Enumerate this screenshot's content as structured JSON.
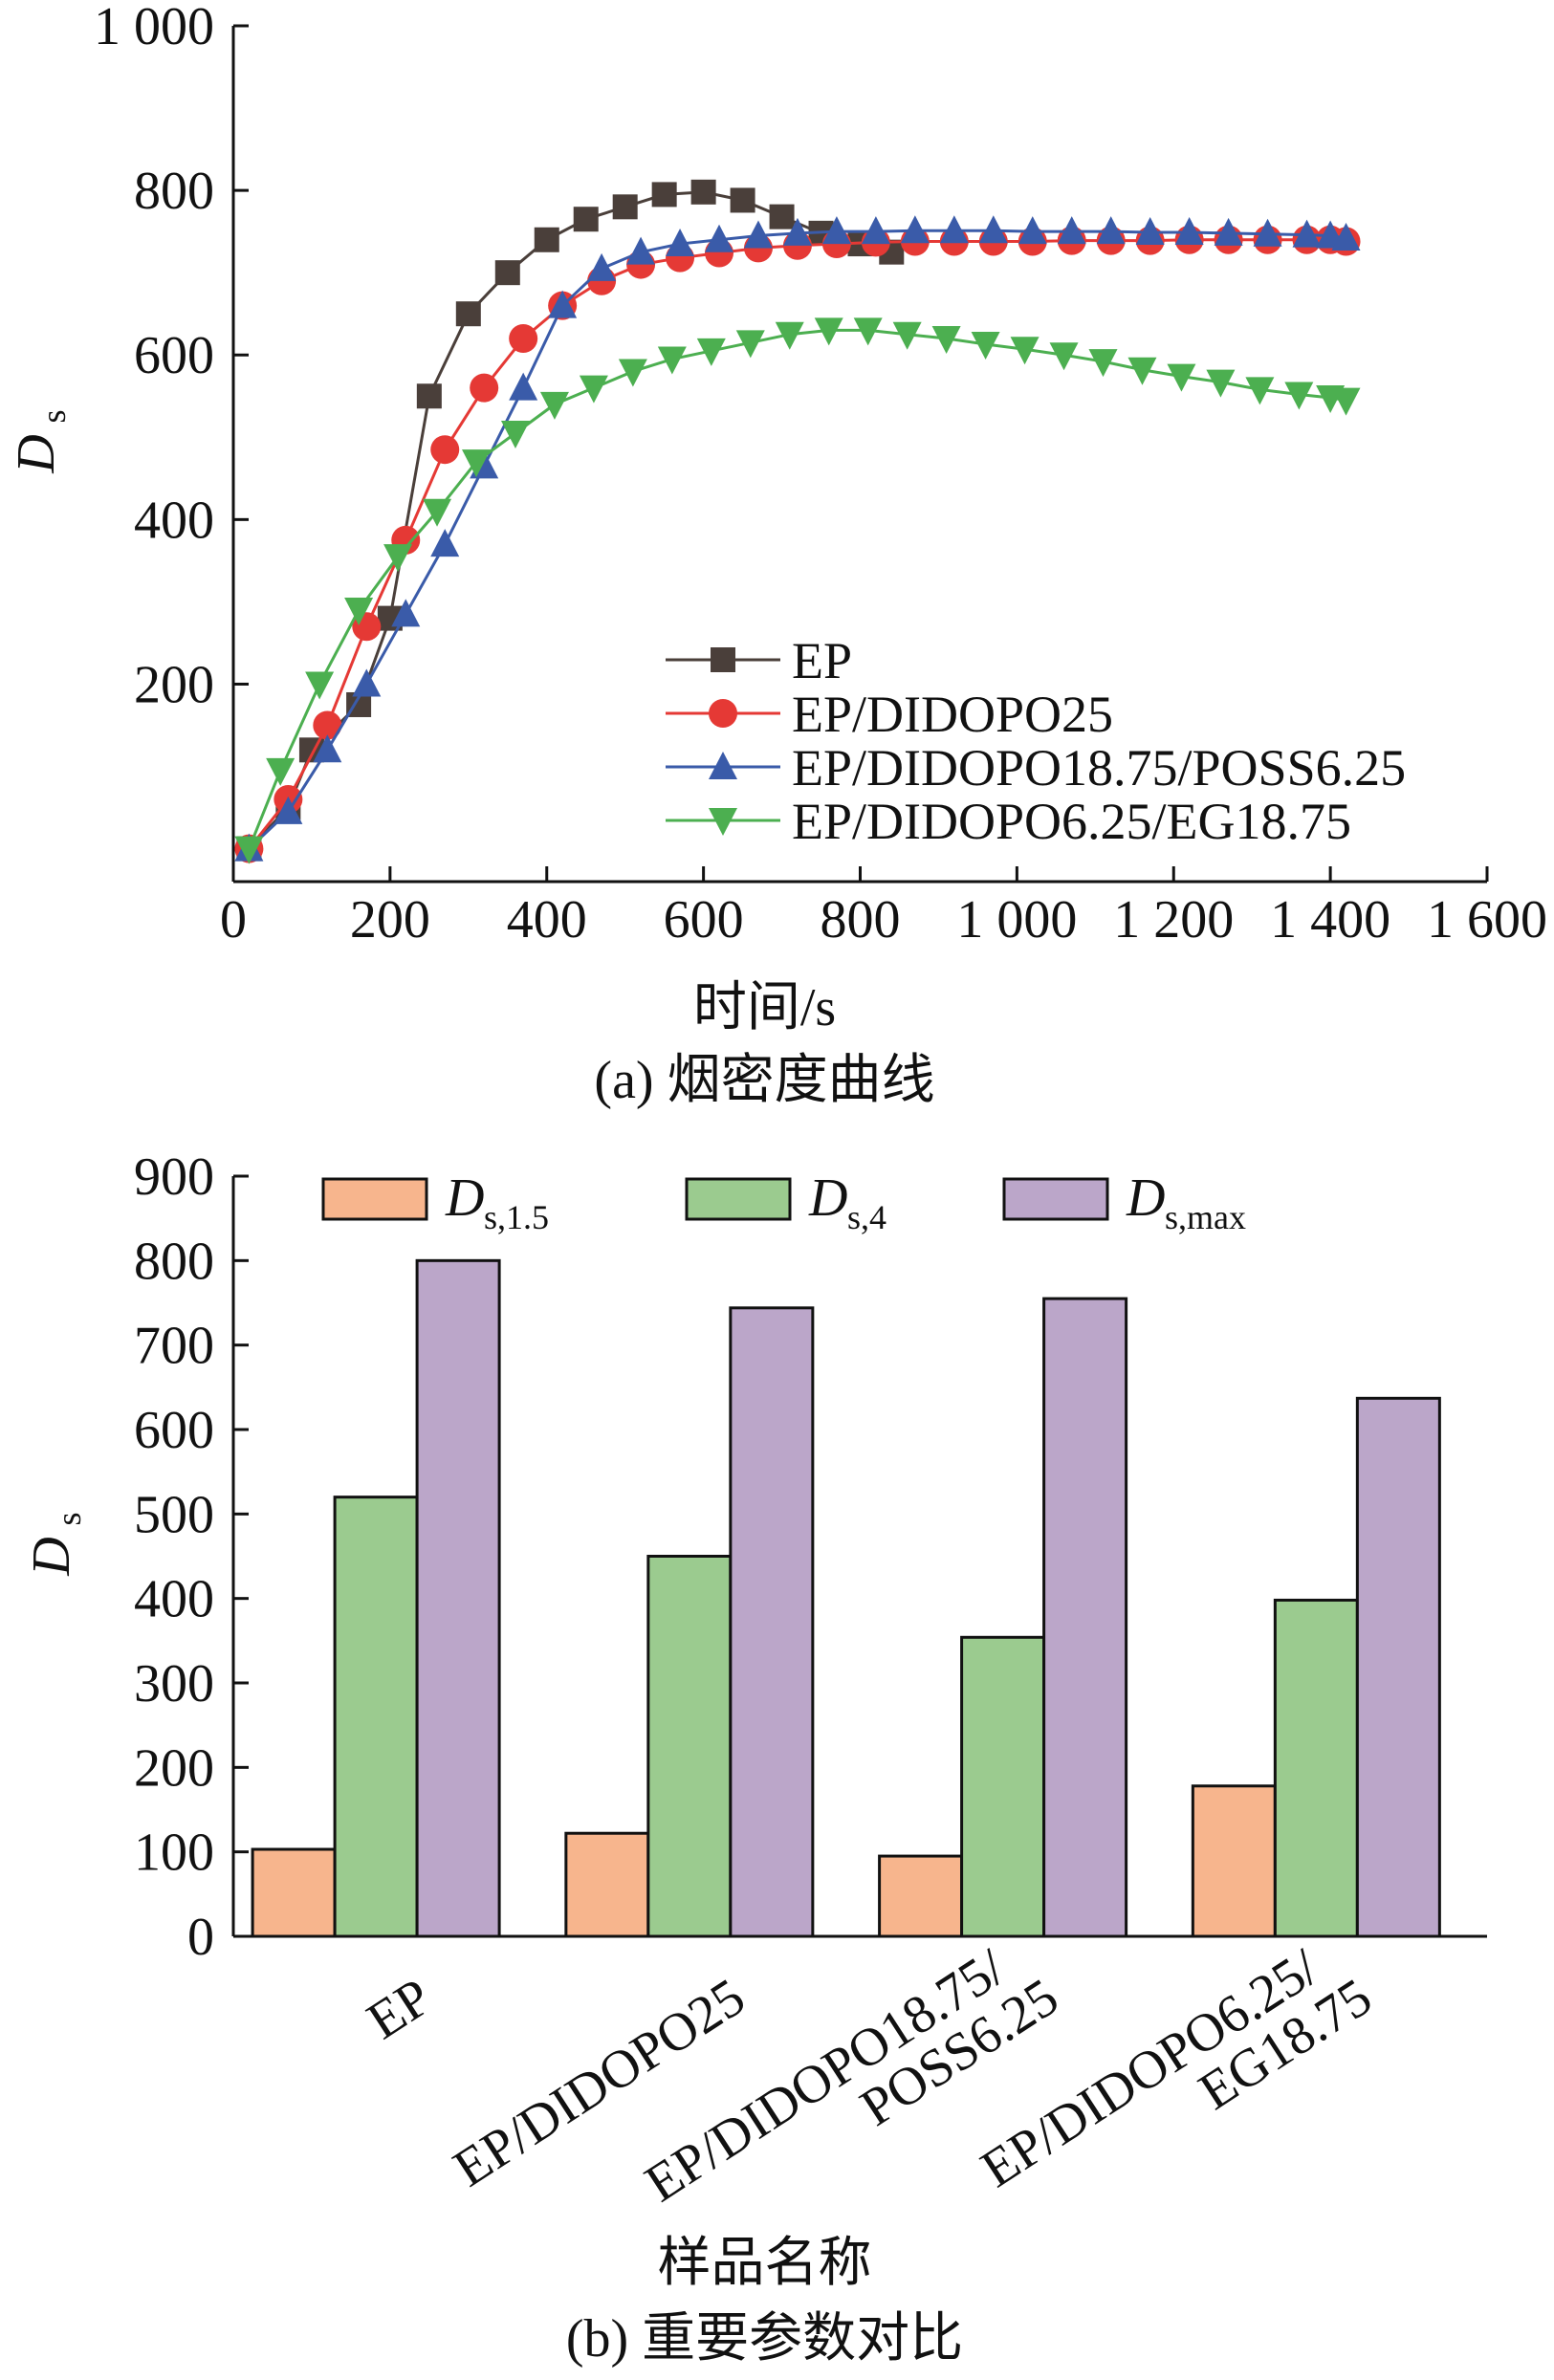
{
  "chart_data": [
    {
      "type": "line",
      "caption": "(a) 烟密度曲线",
      "xlabel": "时间/s",
      "ylabel": "D",
      "ylabel_sub": "s",
      "xlim": [
        0,
        1600
      ],
      "ylim": [
        -40,
        1000
      ],
      "xticks": [
        0,
        200,
        400,
        600,
        800,
        1000,
        1200,
        1400,
        1600
      ],
      "xtick_labels": [
        "0",
        "200",
        "400",
        "600",
        "800",
        "1 000",
        "1 200",
        "1 400",
        "1 600"
      ],
      "yticks": [
        200,
        400,
        600,
        800,
        1000
      ],
      "ytick_labels": [
        "200",
        "400",
        "600",
        "800",
        "1 000"
      ],
      "legend_position": "lower-right",
      "series": [
        {
          "name": "EP",
          "color": "#4a3f3a",
          "marker": "square",
          "x": [
            20,
            70,
            100,
            160,
            200,
            250,
            300,
            350,
            400,
            450,
            500,
            550,
            600,
            650,
            700,
            750,
            800,
            840
          ],
          "y": [
            0,
            50,
            120,
            175,
            280,
            550,
            650,
            700,
            740,
            765,
            780,
            795,
            798,
            788,
            768,
            748,
            735,
            725
          ]
        },
        {
          "name": "EP/DIDOPO25",
          "color": "#e53935",
          "marker": "circle",
          "x": [
            20,
            70,
            120,
            170,
            220,
            270,
            320,
            370,
            420,
            470,
            520,
            570,
            620,
            670,
            720,
            770,
            820,
            870,
            920,
            970,
            1020,
            1070,
            1120,
            1170,
            1220,
            1270,
            1320,
            1370,
            1400,
            1420
          ],
          "y": [
            0,
            60,
            150,
            270,
            375,
            485,
            560,
            620,
            660,
            690,
            710,
            718,
            724,
            730,
            733,
            735,
            737,
            738,
            738,
            738,
            738,
            739,
            739,
            739,
            740,
            740,
            740,
            740,
            740,
            738
          ]
        },
        {
          "name": "EP/DIDOPO18.75/POSS6.25",
          "color": "#3a5ba9",
          "marker": "triangle-up",
          "x": [
            20,
            70,
            120,
            170,
            220,
            270,
            320,
            370,
            420,
            470,
            520,
            570,
            620,
            670,
            720,
            770,
            820,
            870,
            920,
            970,
            1020,
            1070,
            1120,
            1170,
            1220,
            1270,
            1320,
            1370,
            1400,
            1420
          ],
          "y": [
            0,
            45,
            120,
            200,
            285,
            370,
            465,
            560,
            660,
            705,
            725,
            735,
            740,
            745,
            748,
            750,
            750,
            751,
            751,
            751,
            750,
            750,
            750,
            749,
            749,
            748,
            747,
            746,
            745,
            742
          ]
        },
        {
          "name": "EP/DIDOPO6.25/EG18.75",
          "color": "#4caf50",
          "marker": "triangle-down",
          "x": [
            20,
            60,
            110,
            160,
            210,
            260,
            310,
            360,
            410,
            460,
            510,
            560,
            610,
            660,
            710,
            760,
            810,
            860,
            910,
            960,
            1010,
            1060,
            1110,
            1160,
            1210,
            1260,
            1310,
            1360,
            1400,
            1420
          ],
          "y": [
            0,
            95,
            200,
            290,
            355,
            410,
            470,
            505,
            540,
            560,
            580,
            595,
            605,
            615,
            625,
            630,
            630,
            625,
            620,
            613,
            607,
            600,
            592,
            582,
            574,
            567,
            558,
            552,
            548,
            545
          ]
        }
      ]
    },
    {
      "type": "bar",
      "caption": "(b) 重要参数对比",
      "xlabel": "样品名称",
      "ylabel": "D",
      "ylabel_sub": "s",
      "ylim": [
        0,
        900
      ],
      "yticks": [
        0,
        100,
        200,
        300,
        400,
        500,
        600,
        700,
        800,
        900
      ],
      "categories": [
        [
          "EP"
        ],
        [
          "EP/DIDOPO25"
        ],
        [
          "EP/DIDOPO18.75/",
          "POSS6.25"
        ],
        [
          "EP/DIDOPO6.25/",
          "EG18.75"
        ]
      ],
      "legend_position": "top",
      "series": [
        {
          "name": "D",
          "name_sub": "s,1.5",
          "color": "#f7b58d",
          "values": [
            103,
            122,
            95,
            178
          ]
        },
        {
          "name": "D",
          "name_sub": "s,4",
          "color": "#9bcb8f",
          "values": [
            520,
            450,
            354,
            398
          ]
        },
        {
          "name": "D",
          "name_sub": "s,max",
          "color": "#bba6c9",
          "values": [
            800,
            744,
            755,
            637
          ]
        }
      ]
    }
  ]
}
